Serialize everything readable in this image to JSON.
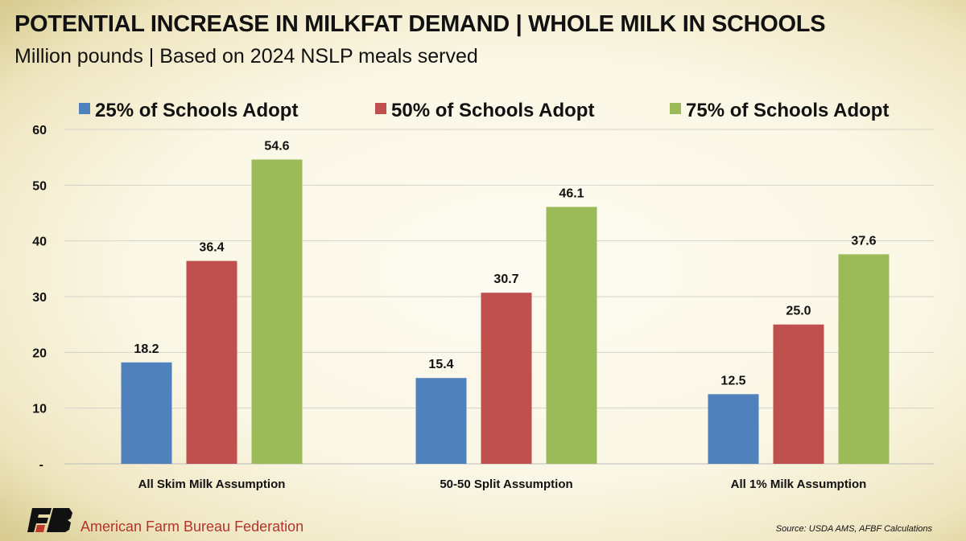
{
  "title": "POTENTIAL INCREASE IN MILKFAT DEMAND | WHOLE MILK IN SCHOOLS",
  "subtitle": "Million pounds | Based on 2024 NSLP meals served",
  "footer": {
    "organization": "American Farm Bureau Federation",
    "source": "Source: USDA AMS, AFBF Calculations",
    "logo_text": "FB"
  },
  "chart_data": {
    "type": "bar",
    "categories": [
      "All Skim Milk Assumption",
      "50-50 Split Assumption",
      "All 1% Milk Assumption"
    ],
    "series": [
      {
        "name": "25% of Schools Adopt",
        "color": "#4f81bd",
        "values": [
          18.2,
          15.4,
          12.5
        ],
        "labels": [
          "18.2",
          "15.4",
          "12.5"
        ]
      },
      {
        "name": "50% of Schools Adopt",
        "color": "#c0504d",
        "values": [
          36.4,
          30.7,
          25.0
        ],
        "labels": [
          "36.4",
          "30.7",
          "25.0"
        ]
      },
      {
        "name": "75% of Schools Adopt",
        "color": "#9bbb59",
        "values": [
          54.6,
          46.1,
          37.6
        ],
        "labels": [
          "54.6",
          "46.1",
          "37.6"
        ]
      }
    ],
    "ylim": [
      0,
      60
    ],
    "yticks": [
      0,
      10,
      20,
      30,
      40,
      50,
      60
    ],
    "ytick_labels": [
      "-",
      "10",
      "20",
      "30",
      "40",
      "50",
      "60"
    ],
    "grid": true,
    "legend_position": "top"
  }
}
